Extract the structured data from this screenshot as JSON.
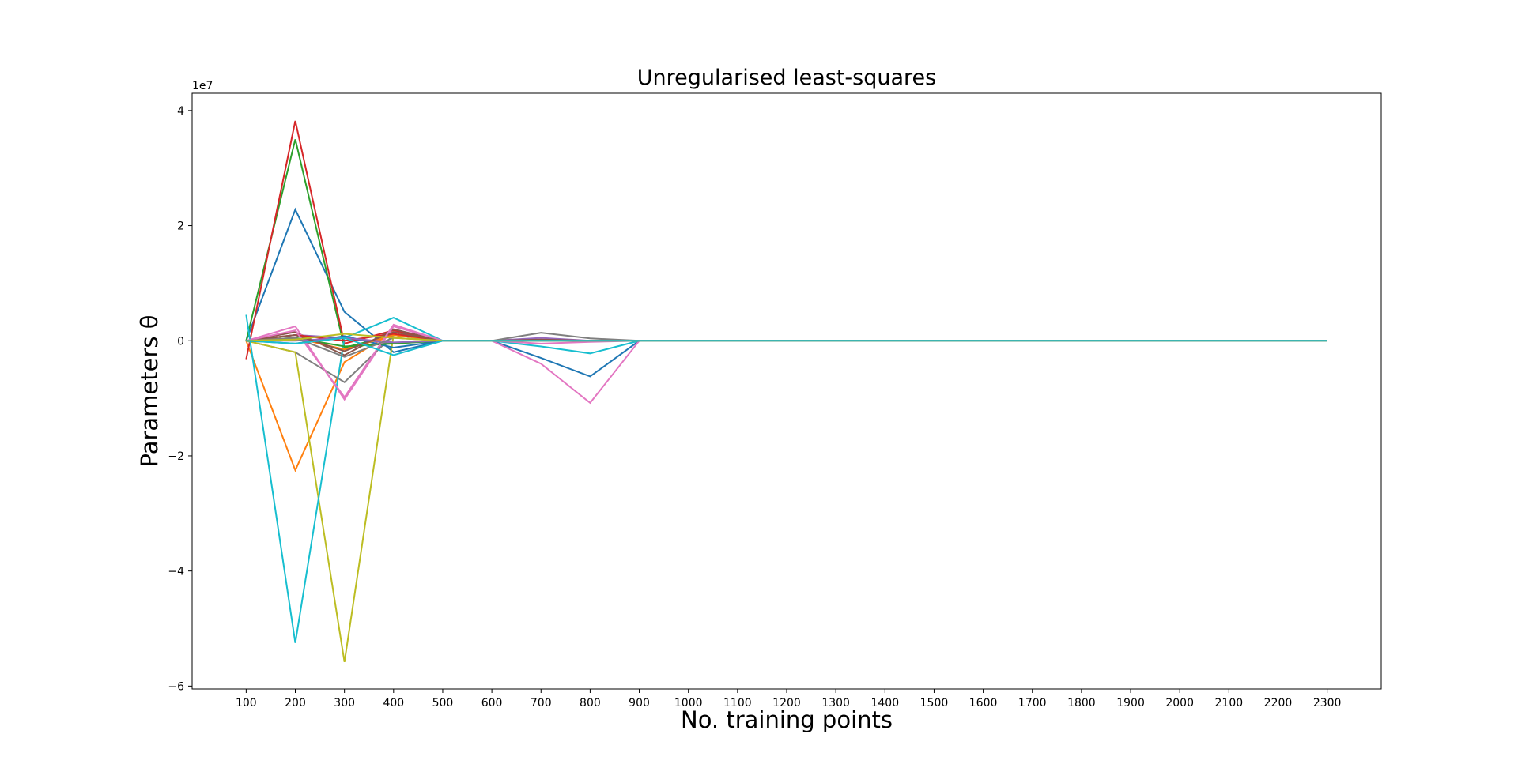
{
  "chart_data": {
    "type": "line",
    "title": "Unregularised least-squares",
    "xlabel": "No. training points",
    "ylabel": "Parameters θ",
    "y_offset_text": "1e7",
    "y_scale": 10000000,
    "x": [
      100,
      200,
      300,
      400,
      500,
      600,
      700,
      800,
      900,
      1000,
      1100,
      1200,
      1300,
      1400,
      1500,
      1600,
      1700,
      1800,
      1900,
      2000,
      2100,
      2200,
      2300
    ],
    "xticks": [
      100,
      200,
      300,
      400,
      500,
      600,
      700,
      800,
      900,
      1000,
      1100,
      1200,
      1300,
      1400,
      1500,
      1600,
      1700,
      1800,
      1900,
      2000,
      2100,
      2200,
      2300
    ],
    "xtick_labels": [
      "100",
      "200",
      "300",
      "400",
      "500",
      "600",
      "700",
      "800",
      "900",
      "1000",
      "1100",
      "1200",
      "1300",
      "1400",
      "1500",
      "1600",
      "1700",
      "1800",
      "1900",
      "2000",
      "2100",
      "2200",
      "2300"
    ],
    "xlim": [
      -10,
      2410
    ],
    "ylim": [
      -6.05,
      4.3
    ],
    "yticks": [
      -6,
      -4,
      -2,
      0,
      2,
      4
    ],
    "ytick_labels": [
      "−6",
      "−4",
      "−2",
      "0",
      "2",
      "4"
    ],
    "grid": false,
    "legend": false,
    "series": [
      {
        "color": "#1f77b4",
        "values": [
          0,
          2.28,
          0.5,
          -0.2,
          0,
          0,
          -0.3,
          -0.62,
          0,
          0,
          0,
          0,
          0,
          0,
          0,
          0,
          0,
          0,
          0,
          0,
          0,
          0,
          0
        ]
      },
      {
        "color": "#ff7f0e",
        "values": [
          0,
          -2.25,
          -0.37,
          0.15,
          0,
          0,
          0,
          0,
          0,
          0,
          0,
          0,
          0,
          0,
          0,
          0,
          0,
          0,
          0,
          0,
          0,
          0,
          0
        ]
      },
      {
        "color": "#2ca02c",
        "values": [
          0,
          3.5,
          -0.12,
          0.1,
          0,
          0,
          0,
          0,
          0,
          0,
          0,
          0,
          0,
          0,
          0,
          0,
          0,
          0,
          0,
          0,
          0,
          0,
          0
        ]
      },
      {
        "color": "#d62728",
        "values": [
          -0.32,
          3.82,
          -0.05,
          0.18,
          0,
          0,
          0,
          0,
          0,
          0,
          0,
          0,
          0,
          0,
          0,
          0,
          0,
          0,
          0,
          0,
          0,
          0,
          0
        ]
      },
      {
        "color": "#9467bd",
        "values": [
          0,
          0.1,
          0.05,
          -0.05,
          0,
          0,
          0.05,
          0,
          0,
          0,
          0,
          0,
          0,
          0,
          0,
          0,
          0,
          0,
          0,
          0,
          0,
          0,
          0
        ]
      },
      {
        "color": "#8c564b",
        "values": [
          0,
          0.15,
          -0.25,
          0.2,
          0,
          0,
          0,
          0,
          0,
          0,
          0,
          0,
          0,
          0,
          0,
          0,
          0,
          0,
          0,
          0,
          0,
          0,
          0
        ]
      },
      {
        "color": "#e377c2",
        "values": [
          0,
          0.25,
          -1.02,
          0.25,
          0,
          0,
          -0.4,
          -1.08,
          0,
          0,
          0,
          0,
          0,
          0,
          0,
          0,
          0,
          0,
          0,
          0,
          0,
          0,
          0
        ]
      },
      {
        "color": "#7f7f7f",
        "values": [
          0,
          -0.2,
          -0.72,
          0.1,
          0,
          0,
          0.14,
          0.04,
          0,
          0,
          0,
          0,
          0,
          0,
          0,
          0,
          0,
          0,
          0,
          0,
          0,
          0,
          0
        ]
      },
      {
        "color": "#bcbd22",
        "values": [
          0,
          -0.2,
          -5.58,
          0.1,
          0,
          0,
          0,
          0,
          0,
          0,
          0,
          0,
          0,
          0,
          0,
          0,
          0,
          0,
          0,
          0,
          0,
          0,
          0
        ]
      },
      {
        "color": "#17becf",
        "values": [
          0.45,
          -5.25,
          0.05,
          0.4,
          0,
          0,
          -0.1,
          -0.22,
          0,
          0,
          0,
          0,
          0,
          0,
          0,
          0,
          0,
          0,
          0,
          0,
          0,
          0,
          0
        ]
      },
      {
        "color": "#1f77b4",
        "values": [
          0,
          -0.05,
          0.08,
          -0.12,
          0,
          0,
          0,
          0,
          0,
          0,
          0,
          0,
          0,
          0,
          0,
          0,
          0,
          0,
          0,
          0,
          0,
          0,
          0
        ]
      },
      {
        "color": "#ff7f0e",
        "values": [
          0,
          0.05,
          -0.15,
          0.1,
          0,
          0,
          0,
          0,
          0,
          0,
          0,
          0,
          0,
          0,
          0,
          0,
          0,
          0,
          0,
          0,
          0,
          0,
          0
        ]
      },
      {
        "color": "#2ca02c",
        "values": [
          0,
          0.05,
          -0.1,
          -0.05,
          0,
          0,
          0,
          0,
          0,
          0,
          0,
          0,
          0,
          0,
          0,
          0,
          0,
          0,
          0,
          0,
          0,
          0,
          0
        ]
      },
      {
        "color": "#d62728",
        "values": [
          0,
          0.1,
          0.0,
          0.12,
          0,
          0,
          0,
          0,
          0,
          0,
          0,
          0,
          0,
          0,
          0,
          0,
          0,
          0,
          0,
          0,
          0,
          0,
          0
        ]
      },
      {
        "color": "#9467bd",
        "values": [
          0,
          0.0,
          0.05,
          -0.03,
          0,
          0,
          0.02,
          0,
          0,
          0,
          0,
          0,
          0,
          0,
          0,
          0,
          0,
          0,
          0,
          0,
          0,
          0,
          0
        ]
      },
      {
        "color": "#8c564b",
        "values": [
          0,
          0.1,
          -0.18,
          0.15,
          0,
          0,
          0.02,
          0,
          0,
          0,
          0,
          0,
          0,
          0,
          0,
          0,
          0,
          0,
          0,
          0,
          0,
          0,
          0
        ]
      },
      {
        "color": "#e377c2",
        "values": [
          0,
          0.18,
          -0.98,
          0.28,
          0,
          0,
          -0.05,
          -0.02,
          0,
          0,
          0,
          0,
          0,
          0,
          0,
          0,
          0,
          0,
          0,
          0,
          0,
          0,
          0
        ]
      },
      {
        "color": "#7f7f7f",
        "values": [
          0,
          0.05,
          -0.28,
          0.05,
          0,
          0,
          0,
          0,
          0,
          0,
          0,
          0,
          0,
          0,
          0,
          0,
          0,
          0,
          0,
          0,
          0,
          0,
          0
        ]
      },
      {
        "color": "#bcbd22",
        "values": [
          0,
          0.02,
          0.12,
          0.05,
          0,
          0,
          0,
          0,
          0,
          0,
          0,
          0,
          0,
          0,
          0,
          0,
          0,
          0,
          0,
          0,
          0,
          0,
          0
        ]
      },
      {
        "color": "#17becf",
        "values": [
          0,
          -0.05,
          0.05,
          -0.25,
          0,
          0,
          0,
          0,
          0,
          0,
          0,
          0,
          0,
          0,
          0,
          0,
          0,
          0,
          0,
          0,
          0,
          0,
          0
        ]
      }
    ]
  }
}
